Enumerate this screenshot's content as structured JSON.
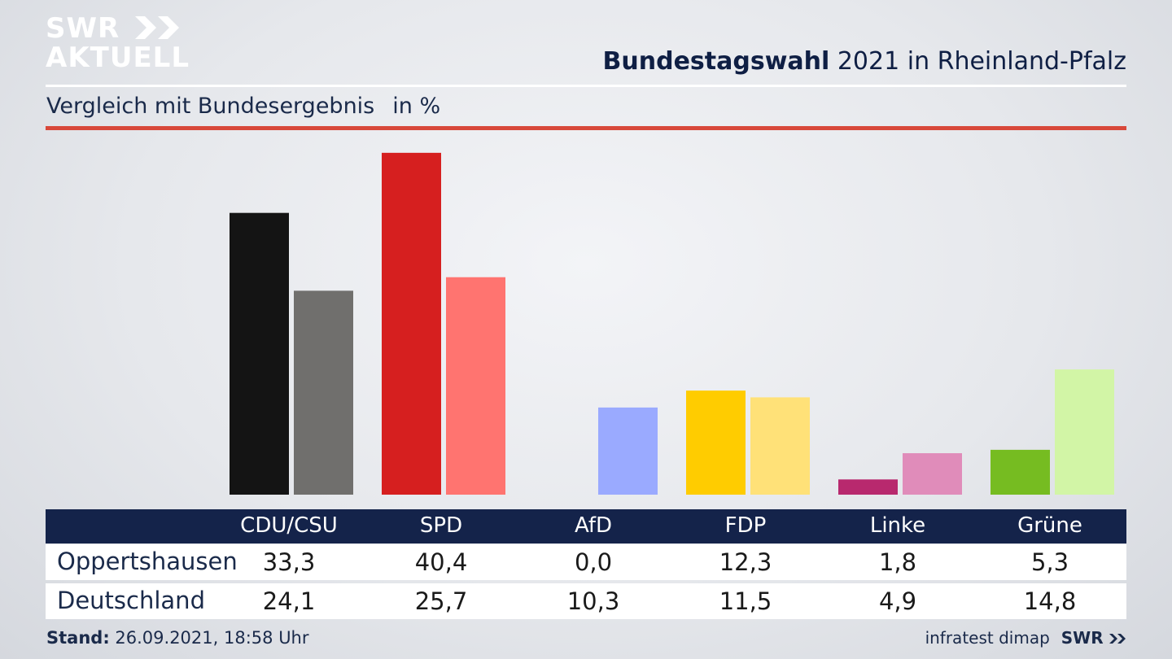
{
  "logo": {
    "line1": "SWR",
    "line2": "AKTUELL"
  },
  "header": {
    "title_bold": "Bundestagswahl",
    "title_rest": "2021 in Rheinland-Pfalz",
    "subtitle": "Vergleich mit Bundesergebnis",
    "unit": "in %"
  },
  "chart_data": {
    "type": "bar",
    "categories": [
      "CDU/CSU",
      "SPD",
      "AfD",
      "FDP",
      "Linke",
      "Grüne"
    ],
    "series": [
      {
        "name": "Oppertshausen",
        "values": [
          33.3,
          40.4,
          0.0,
          12.3,
          1.8,
          5.3
        ],
        "colors": [
          "#141414",
          "#d61f1f",
          "#9aaaff",
          "#ffcc00",
          "#b8296e",
          "#76bc21"
        ]
      },
      {
        "name": "Deutschland",
        "values": [
          24.1,
          25.7,
          10.3,
          11.5,
          4.9,
          14.8
        ],
        "colors": [
          "#706f6d",
          "#ff7470",
          "#9aaaff",
          "#ffe178",
          "#e08cba",
          "#d2f5a6"
        ]
      }
    ]
  },
  "table": {
    "header_labels": [
      "CDU/CSU",
      "SPD",
      "AfD",
      "FDP",
      "Linke",
      "Grüne"
    ],
    "rows": [
      {
        "label": "Oppertshausen",
        "values": [
          "33,3",
          "40,4",
          "0,0",
          "12,3",
          "1,8",
          "5,3"
        ]
      },
      {
        "label": "Deutschland",
        "values": [
          "24,1",
          "25,7",
          "10,3",
          "11,5",
          "4,9",
          "14,8"
        ]
      }
    ]
  },
  "footer": {
    "stand_label": "Stand:",
    "stand_value": "26.09.2021, 18:58 Uhr",
    "source": "infratest dimap",
    "brand": "SWR"
  }
}
